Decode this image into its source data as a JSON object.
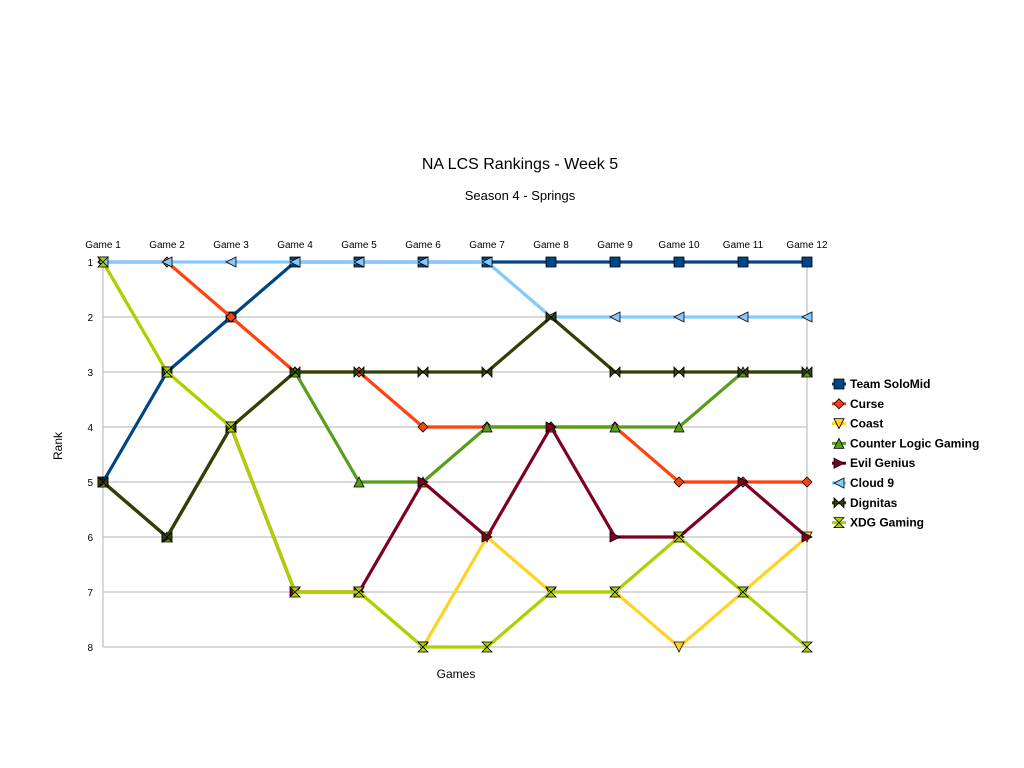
{
  "chart_data": {
    "type": "line",
    "title": "NA LCS Rankings - Week 5",
    "subtitle": "Season 4 - Springs",
    "xlabel": "Games",
    "ylabel": "Rank",
    "x": [
      "Game 1",
      "Game 2",
      "Game 3",
      "Game 4",
      "Game 5",
      "Game 6",
      "Game 7",
      "Game 8",
      "Game 9",
      "Game 10",
      "Game 11",
      "Game 12"
    ],
    "x_axis_position": "top",
    "y_ticks": [
      1,
      2,
      3,
      4,
      5,
      6,
      7,
      8
    ],
    "ylim": [
      1,
      8
    ],
    "y_inverted": true,
    "grid": true,
    "legend_position": "right",
    "series": [
      {
        "name": "Team SoloMid",
        "color": "#004586",
        "marker": "square",
        "values": [
          5,
          3,
          2,
          1,
          1,
          1,
          1,
          1,
          1,
          1,
          1,
          1
        ]
      },
      {
        "name": "Curse",
        "color": "#ff420e",
        "marker": "diamond",
        "values": [
          1,
          1,
          2,
          3,
          3,
          4,
          4,
          4,
          4,
          5,
          5,
          5
        ]
      },
      {
        "name": "Coast",
        "color": "#ffd320",
        "marker": "triangle-down",
        "values": [
          1,
          3,
          4,
          7,
          7,
          8,
          6,
          7,
          7,
          8,
          7,
          6
        ]
      },
      {
        "name": "Counter Logic Gaming",
        "color": "#579d1c",
        "marker": "triangle-up",
        "values": [
          5,
          6,
          4,
          3,
          5,
          5,
          4,
          4,
          4,
          4,
          3,
          3
        ]
      },
      {
        "name": "Evil Genius",
        "color": "#7e0021",
        "marker": "triangle-right",
        "values": [
          5,
          6,
          4,
          7,
          7,
          5,
          6,
          4,
          6,
          6,
          5,
          6
        ]
      },
      {
        "name": "Cloud 9",
        "color": "#83caff",
        "marker": "triangle-left",
        "values": [
          1,
          1,
          1,
          1,
          1,
          1,
          1,
          2,
          2,
          2,
          2,
          2
        ]
      },
      {
        "name": "Dignitas",
        "color": "#314004",
        "marker": "bowtie",
        "values": [
          5,
          6,
          4,
          3,
          3,
          3,
          3,
          2,
          3,
          3,
          3,
          3
        ]
      },
      {
        "name": "XDG Gaming",
        "color": "#aecf00",
        "marker": "hourglass",
        "values": [
          1,
          3,
          4,
          7,
          7,
          8,
          8,
          7,
          7,
          6,
          7,
          8
        ]
      }
    ]
  }
}
